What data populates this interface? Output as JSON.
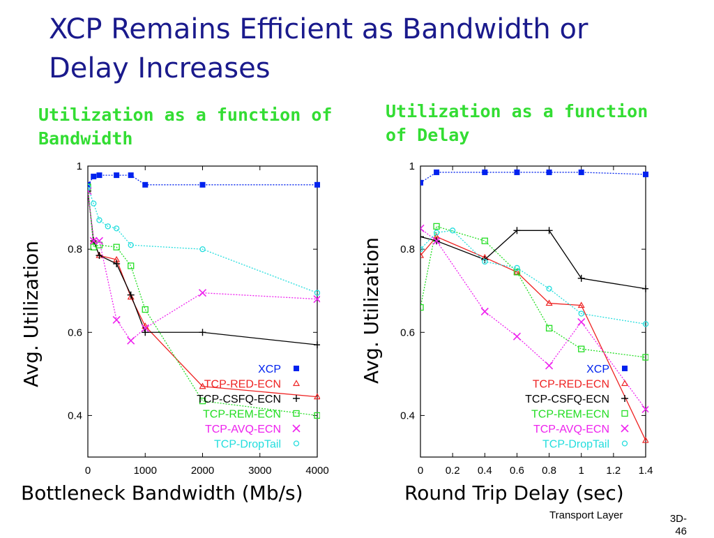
{
  "slide": {
    "title": "XCP Remains Efficient as Bandwidth or Delay Increases",
    "footer": "Transport Layer",
    "page": "3D-46",
    "title_color": "#1a1a8c",
    "subtitle_color": "#33dd33"
  },
  "series_styles": [
    {
      "name": "XCP",
      "color": "#0022ee",
      "marker": "filled-square"
    },
    {
      "name": "TCP-RED-ECN",
      "color": "#ee2222",
      "marker": "triangle"
    },
    {
      "name": "TCP-CSFQ-ECN",
      "color": "#000000",
      "marker": "plus"
    },
    {
      "name": "TCP-REM-ECN",
      "color": "#22dd22",
      "marker": "open-square"
    },
    {
      "name": "TCP-AVQ-ECN",
      "color": "#ee22ee",
      "marker": "x"
    },
    {
      "name": "TCP-DropTail",
      "color": "#22dddd",
      "marker": "circle"
    }
  ],
  "chart_data": [
    {
      "type": "line",
      "title": "Utilization as a function of Bandwidth",
      "xlabel": "Bottleneck Bandwidth (Mb/s)",
      "ylabel": "Avg. Utilization",
      "xlim": [
        0,
        4000
      ],
      "ylim": [
        0.3,
        1.0
      ],
      "xticks": [
        0,
        1000,
        2000,
        3000,
        4000
      ],
      "yticks": [
        0.4,
        0.6,
        0.8,
        1.0
      ],
      "ytick_labels": [
        "0.4",
        "0.6",
        "0.8",
        "1"
      ],
      "grid": false,
      "legend": "bottom-right",
      "series": [
        {
          "name": "XCP",
          "x": [
            0,
            100,
            200,
            500,
            750,
            1000,
            2000,
            4000
          ],
          "y": [
            0.955,
            0.975,
            0.978,
            0.978,
            0.978,
            0.955,
            0.955,
            0.955
          ]
        },
        {
          "name": "TCP-RED-ECN",
          "x": [
            0,
            100,
            200,
            500,
            750,
            1000,
            2000,
            4000
          ],
          "y": [
            0.94,
            0.82,
            0.785,
            0.775,
            0.685,
            0.615,
            0.47,
            0.445
          ]
        },
        {
          "name": "TCP-CSFQ-ECN",
          "x": [
            0,
            100,
            200,
            500,
            750,
            1000,
            2000,
            4000
          ],
          "y": [
            0.94,
            0.82,
            0.785,
            0.765,
            0.69,
            0.6,
            0.6,
            0.57
          ]
        },
        {
          "name": "TCP-REM-ECN",
          "x": [
            0,
            100,
            200,
            500,
            750,
            1000,
            2000,
            4000
          ],
          "y": [
            0.95,
            0.805,
            0.81,
            0.805,
            0.76,
            0.655,
            0.435,
            0.4
          ]
        },
        {
          "name": "TCP-AVQ-ECN",
          "x": [
            0,
            100,
            200,
            500,
            750,
            1000,
            2000,
            4000
          ],
          "y": [
            0.94,
            0.82,
            0.82,
            0.63,
            0.58,
            0.61,
            0.695,
            0.68
          ]
        },
        {
          "name": "TCP-DropTail",
          "x": [
            0,
            100,
            200,
            350,
            500,
            750,
            2000,
            4000
          ],
          "y": [
            0.95,
            0.91,
            0.87,
            0.855,
            0.85,
            0.81,
            0.8,
            0.695
          ]
        }
      ]
    },
    {
      "type": "line",
      "title": "Utilization as a function of Delay",
      "xlabel": "Round Trip Delay (sec)",
      "ylabel": "Avg. Utilization",
      "xlim": [
        0,
        1.4
      ],
      "ylim": [
        0.3,
        1.0
      ],
      "xticks": [
        0,
        0.2,
        0.4,
        0.6,
        0.8,
        1.0,
        1.2,
        1.4
      ],
      "xtick_labels": [
        "0",
        "0.2",
        "0.4",
        "0.6",
        "0.8",
        "1",
        "1.2",
        "1.4"
      ],
      "yticks": [
        0.4,
        0.6,
        0.8,
        1.0
      ],
      "ytick_labels": [
        "0.4",
        "0.6",
        "0.8",
        "1"
      ],
      "grid": false,
      "legend": "bottom-right",
      "series": [
        {
          "name": "XCP",
          "x": [
            0,
            0.1,
            0.4,
            0.6,
            0.8,
            1.0,
            1.4
          ],
          "y": [
            0.96,
            0.985,
            0.985,
            0.985,
            0.985,
            0.985,
            0.98
          ]
        },
        {
          "name": "TCP-RED-ECN",
          "x": [
            0,
            0.1,
            0.4,
            0.6,
            0.8,
            1.0,
            1.4
          ],
          "y": [
            0.785,
            0.83,
            0.78,
            0.745,
            0.67,
            0.665,
            0.34
          ]
        },
        {
          "name": "TCP-CSFQ-ECN",
          "x": [
            0,
            0.1,
            0.4,
            0.6,
            0.8,
            1.0,
            1.4
          ],
          "y": [
            0.83,
            0.82,
            0.775,
            0.845,
            0.845,
            0.73,
            0.705
          ]
        },
        {
          "name": "TCP-REM-ECN",
          "x": [
            0,
            0.1,
            0.4,
            0.6,
            0.8,
            1.0,
            1.4
          ],
          "y": [
            0.66,
            0.855,
            0.82,
            0.745,
            0.61,
            0.56,
            0.54
          ]
        },
        {
          "name": "TCP-AVQ-ECN",
          "x": [
            0,
            0.1,
            0.4,
            0.6,
            0.8,
            1.0,
            1.4
          ],
          "y": [
            0.85,
            0.82,
            0.65,
            0.59,
            0.52,
            0.625,
            0.415
          ]
        },
        {
          "name": "TCP-DropTail",
          "x": [
            0,
            0.1,
            0.2,
            0.4,
            0.6,
            0.8,
            1.0,
            1.4
          ],
          "y": [
            0.8,
            0.84,
            0.845,
            0.77,
            0.755,
            0.705,
            0.645,
            0.62
          ]
        }
      ]
    }
  ]
}
